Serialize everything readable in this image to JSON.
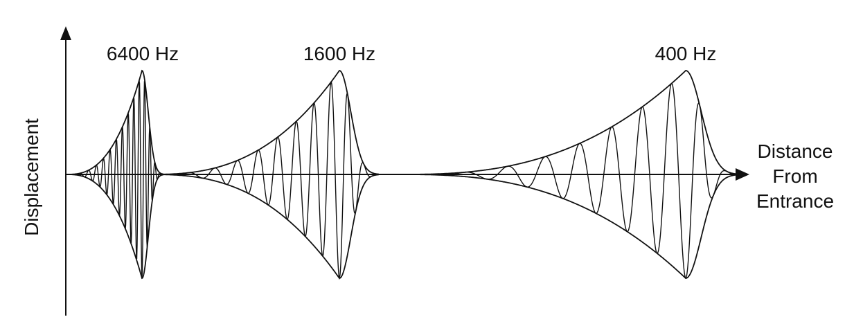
{
  "axes": {
    "y_label": "Displacement",
    "x_label_lines": [
      "Distance",
      "From",
      "Entrance"
    ]
  },
  "waves": [
    {
      "label": "6400 Hz"
    },
    {
      "label": "1600 Hz"
    },
    {
      "label": "400 Hz"
    }
  ],
  "colors": {
    "stroke": "#111111",
    "background": "#ffffff"
  }
}
